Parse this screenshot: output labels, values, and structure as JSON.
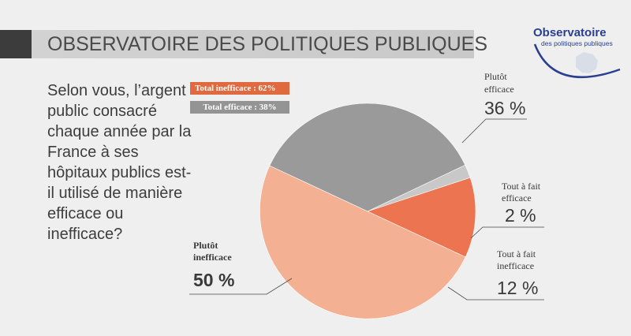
{
  "header": {
    "title": "OBSERVATOIRE DES POLITIQUES PUBLIQUES"
  },
  "logo": {
    "line1": "Observatoire",
    "line2": "des politiques publiques"
  },
  "question": "Selon vous, l’argent public consacré chaque année par la France à ses hôpitaux publics est-il utilisé de manière efficace ou inefficace?",
  "totals": {
    "inefficace": "Total inefficace : 62%",
    "efficace": "Total efficace : 38%"
  },
  "chart_data": {
    "type": "pie",
    "start_angle_deg": 155,
    "direction": "clockwise",
    "slices": [
      {
        "name": "Plutôt efficace",
        "value": 36,
        "label": "36 %",
        "color": "#9a9a9a"
      },
      {
        "name": "Tout à fait efficace",
        "value": 2,
        "label": "2 %",
        "color": "#c8c8c8"
      },
      {
        "name": "Tout à fait inefficace",
        "value": 12,
        "label": "12 %",
        "color": "#ec7450"
      },
      {
        "name": "Plutôt inefficace",
        "value": 50,
        "label": "50 %",
        "color": "#f3b092"
      }
    ]
  },
  "labels": {
    "plutot_efficace": {
      "line1": "Plutôt",
      "line2": "efficace",
      "value": "36 %"
    },
    "tout_efficace": {
      "line1": "Tout à fait",
      "line2": "efficace",
      "value": "2 %"
    },
    "tout_inefficace": {
      "line1": "Tout à fait",
      "line2": "inefficace",
      "value": "12 %"
    },
    "plutot_inefficace": {
      "line1": "Plutôt",
      "line2": "inefficace",
      "value": "50 %"
    }
  },
  "colors": {
    "background": "#efefef",
    "banner": "#cccccc",
    "accent": "#e0693f",
    "logo_blue": "#2a3f8f"
  }
}
